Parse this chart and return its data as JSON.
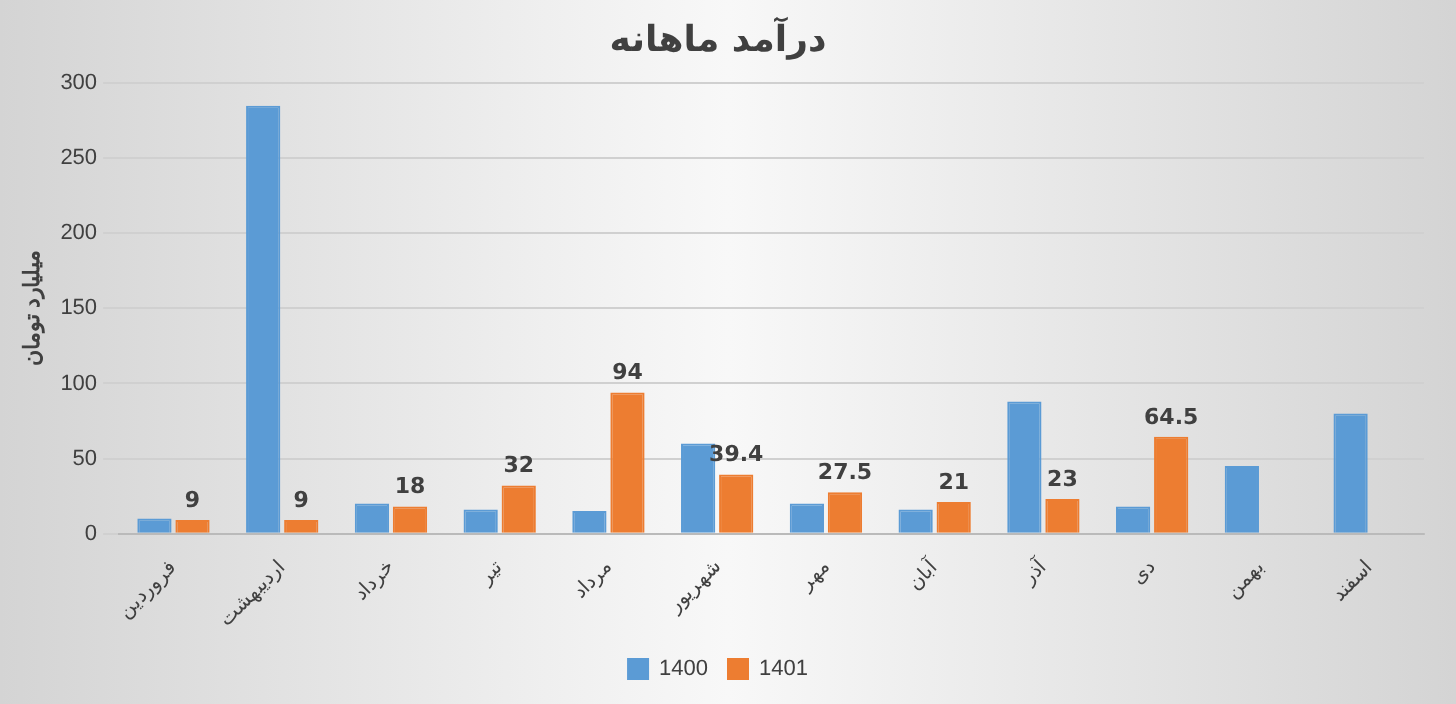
{
  "chart_data": {
    "type": "bar",
    "title": "درآمد ماهانه",
    "ylabel": "میلیارد تومان",
    "categories": [
      "فروردین",
      "اردیبهشت",
      "خرداد",
      "تیر",
      "مرداد",
      "شهریور",
      "مهر",
      "آبان",
      "آذر",
      "دی",
      "بهمن",
      "اسفند"
    ],
    "series": [
      {
        "name": "1400",
        "color": "#5b9bd5",
        "values": [
          10,
          285,
          20,
          16,
          15,
          60,
          20,
          16,
          88,
          18,
          45,
          80
        ]
      },
      {
        "name": "1401",
        "color": "#ed7d31",
        "values": [
          9,
          9,
          18,
          32,
          94,
          39.4,
          27.5,
          21,
          23,
          64.5,
          null,
          null
        ],
        "value_labels": [
          "9",
          "9",
          "18",
          "32",
          "94",
          "39.4",
          "27.5",
          "21",
          "23",
          "64.5",
          null,
          null
        ]
      }
    ],
    "ylim": [
      0,
      300
    ],
    "yticks": [
      0,
      50,
      100,
      150,
      200,
      250,
      300
    ],
    "grid": "y",
    "legend": "bottom"
  }
}
